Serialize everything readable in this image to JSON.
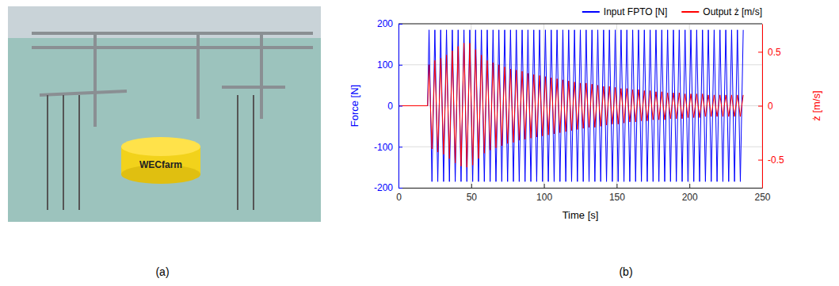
{
  "panel_labels": [
    "(a)",
    "(b)"
  ],
  "photo": {
    "text": "WECfarm"
  },
  "chart_data": {
    "type": "line",
    "x_label": "Time [s]",
    "y_label": "Force [N]",
    "y2_label": "ż [m/s]",
    "xlim": [
      0,
      250
    ],
    "xticks": [
      0,
      50,
      100,
      150,
      200,
      250
    ],
    "ylim": [
      -200,
      200
    ],
    "yticks": [
      -200,
      -100,
      0,
      100,
      200
    ],
    "y2lim": [
      -0.76,
      0.76
    ],
    "y2ticks": [
      -0.5,
      0,
      0.5
    ],
    "grid": true,
    "legend": "top",
    "x": [
      0,
      20,
      21,
      23,
      25,
      27,
      29,
      31,
      33,
      35,
      37,
      39,
      41,
      43,
      45,
      47,
      49,
      51,
      53,
      55,
      57,
      59,
      61,
      63,
      65,
      67,
      69,
      71,
      73,
      75,
      77,
      79,
      81,
      83,
      85,
      87,
      89,
      91,
      93,
      95,
      97,
      99,
      101,
      103,
      105,
      107,
      109,
      111,
      113,
      115,
      117,
      119,
      121,
      123,
      125,
      127,
      129,
      131,
      133,
      135,
      137,
      139,
      141,
      143,
      145,
      147,
      149,
      151,
      153,
      155,
      157,
      159,
      161,
      163,
      165,
      167,
      169,
      171,
      173,
      175,
      177,
      179,
      181,
      183,
      185,
      187,
      189,
      191,
      193,
      195,
      197,
      199,
      201,
      203,
      205,
      207,
      209,
      211,
      213,
      215,
      217,
      219,
      221,
      223,
      225,
      227,
      229,
      231,
      233,
      235,
      237
    ],
    "series": [
      {
        "name": "Input FPTO [N]",
        "color": "#0000ff",
        "values": [
          0,
          0,
          185,
          -185,
          185,
          -185,
          185,
          -185,
          185,
          -185,
          185,
          -185,
          185,
          -185,
          185,
          -185,
          185,
          -185,
          185,
          -185,
          185,
          -185,
          185,
          -185,
          185,
          -185,
          185,
          -185,
          185,
          -185,
          185,
          -185,
          185,
          -185,
          185,
          -185,
          185,
          -185,
          185,
          -185,
          185,
          -185,
          185,
          -185,
          185,
          -185,
          185,
          -185,
          185,
          -185,
          185,
          -185,
          185,
          -185,
          185,
          -185,
          185,
          -185,
          185,
          -185,
          185,
          -185,
          185,
          -185,
          185,
          -185,
          185,
          -185,
          185,
          -185,
          185,
          -185,
          185,
          -185,
          185,
          -185,
          185,
          -185,
          185,
          -185,
          185,
          -185,
          185,
          -185,
          185,
          -185,
          185,
          -185,
          185,
          -185,
          185,
          -185,
          185,
          -185,
          185,
          -185,
          185,
          -185,
          185,
          -185,
          185,
          -185,
          185,
          -185,
          185,
          -185,
          185,
          -185,
          185,
          -185,
          185
        ]
      },
      {
        "name": "Output ż [m/s]",
        "color": "#ff0000",
        "axis": "y2",
        "values": [
          0,
          0,
          0.38,
          -0.4,
          0.42,
          -0.43,
          0.44,
          -0.45,
          0.47,
          -0.49,
          0.51,
          -0.53,
          0.55,
          -0.56,
          0.58,
          -0.57,
          0.58,
          -0.55,
          0.52,
          -0.49,
          0.47,
          -0.44,
          0.42,
          -0.41,
          0.4,
          -0.39,
          0.38,
          -0.37,
          0.36,
          -0.35,
          0.34,
          -0.34,
          0.33,
          -0.32,
          0.32,
          -0.31,
          0.3,
          -0.3,
          0.29,
          -0.29,
          0.28,
          -0.28,
          0.27,
          -0.27,
          0.26,
          -0.26,
          0.25,
          -0.25,
          0.24,
          -0.24,
          0.23,
          -0.23,
          0.22,
          -0.22,
          0.21,
          -0.21,
          0.21,
          -0.2,
          0.2,
          -0.2,
          0.19,
          -0.19,
          0.18,
          -0.18,
          0.18,
          -0.17,
          0.17,
          -0.17,
          0.16,
          -0.16,
          0.16,
          -0.15,
          0.15,
          -0.15,
          0.15,
          -0.14,
          0.14,
          -0.14,
          0.14,
          -0.13,
          0.13,
          -0.13,
          0.13,
          -0.13,
          0.12,
          -0.12,
          0.12,
          -0.12,
          0.12,
          -0.12,
          0.11,
          -0.11,
          0.11,
          -0.11,
          0.11,
          -0.11,
          0.11,
          -0.1,
          0.1,
          -0.1,
          0.1,
          -0.1,
          0.1,
          -0.1,
          0.1,
          -0.1,
          0.1,
          -0.1,
          0.1,
          -0.1,
          0.1
        ]
      }
    ]
  }
}
